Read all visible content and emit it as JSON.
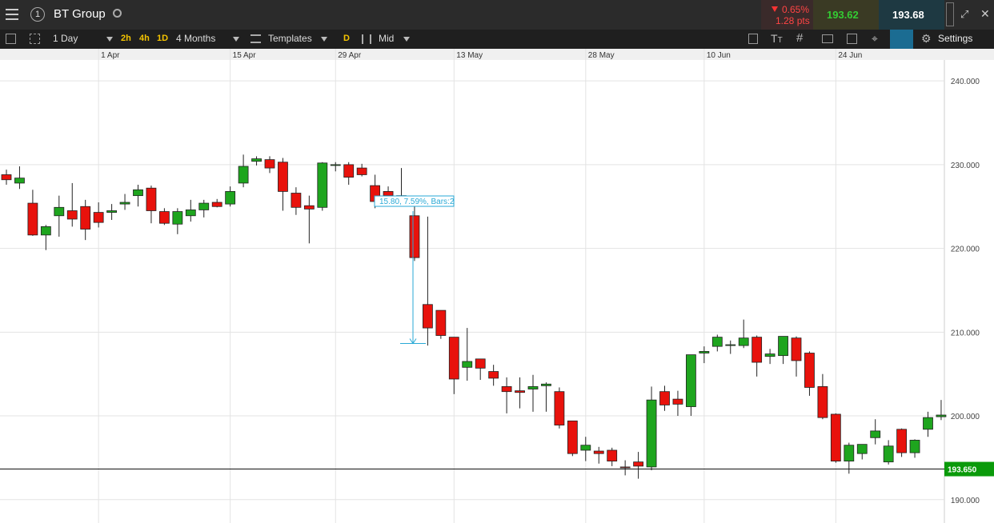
{
  "header": {
    "instrument": "BT Group",
    "link_number": "1",
    "change_percent": "0.65%",
    "change_points": "1.28 pts",
    "sell_price": "193.62",
    "buy_price": "193.68"
  },
  "toolbar": {
    "interval": "1 Day",
    "quick_intervals": [
      "2h",
      "4h",
      "1D"
    ],
    "range": "4 Months",
    "templates": "Templates",
    "drawing_mode": "D",
    "price_type": "Mid",
    "settings": "Settings"
  },
  "chart_data": {
    "type": "candlestick",
    "categories": [
      null,
      null,
      null,
      null,
      null,
      null,
      null,
      "1 Apr",
      null,
      null,
      null,
      null,
      null,
      null,
      null,
      null,
      null,
      "15 Apr",
      null,
      null,
      null,
      null,
      null,
      null,
      null,
      "29 Apr",
      null,
      null,
      null,
      null,
      null,
      null,
      null,
      null,
      "13 May",
      null,
      null,
      null,
      null,
      null,
      null,
      null,
      null,
      null,
      "28 May",
      null,
      null,
      null,
      null,
      null,
      null,
      null,
      null,
      "10 Jun",
      null,
      null,
      null,
      null,
      null,
      null,
      null,
      null,
      null,
      "24 Jun",
      null,
      null,
      null,
      null,
      null,
      null,
      null,
      null
    ],
    "open": [
      228.8,
      227.8,
      225.4,
      221.6,
      223.9,
      224.5,
      225.0,
      224.3,
      224.3,
      225.3,
      226.3,
      227.2,
      224.4,
      222.9,
      223.9,
      224.6,
      225.5,
      225.3,
      227.8,
      230.4,
      230.6,
      230.3,
      226.6,
      225.1,
      224.9,
      229.9,
      230.0,
      229.6,
      227.5,
      226.8,
      226.3,
      223.9,
      213.3,
      212.6,
      209.4,
      205.8,
      206.8,
      205.3,
      203.5,
      203.0,
      203.2,
      203.6,
      202.9,
      199.4,
      195.9,
      195.8,
      195.9,
      193.9,
      194.5,
      193.9,
      202.9,
      202.0,
      201.1,
      207.5,
      208.3,
      208.4,
      208.4,
      209.4,
      207.1,
      207.2,
      209.3,
      207.5,
      203.5,
      200.2,
      194.6,
      195.5,
      197.4,
      194.5,
      198.4,
      195.6,
      198.4,
      199.9
    ],
    "high": [
      229.4,
      229.8,
      227.0,
      222.8,
      226.3,
      227.8,
      225.8,
      225.5,
      225.3,
      226.5,
      227.6,
      227.5,
      224.8,
      224.8,
      225.8,
      225.8,
      225.9,
      227.4,
      231.2,
      231.0,
      231.0,
      230.8,
      227.3,
      226.3,
      230.3,
      230.3,
      230.3,
      230.1,
      228.8,
      227.4,
      229.6,
      226.0,
      223.8,
      212.6,
      209.4,
      210.5,
      206.8,
      206.1,
      204.6,
      204.6,
      204.9,
      204.0,
      203.4,
      199.4,
      197.5,
      196.3,
      196.2,
      194.7,
      195.7,
      203.5,
      203.6,
      203.0,
      207.3,
      208.3,
      209.7,
      209.0,
      211.5,
      209.6,
      208.0,
      209.5,
      209.5,
      207.7,
      205.0,
      200.3,
      196.8,
      196.6,
      199.6,
      197.1,
      198.5,
      197.2,
      200.5,
      201.9
    ],
    "low": [
      227.6,
      227.1,
      221.5,
      219.8,
      221.4,
      222.6,
      221.0,
      222.5,
      223.4,
      224.6,
      225.0,
      223.0,
      222.8,
      221.7,
      223.2,
      223.7,
      224.9,
      225.0,
      227.3,
      229.9,
      229.0,
      224.5,
      224.0,
      220.6,
      224.5,
      229.2,
      227.6,
      228.6,
      224.8,
      225.3,
      225.0,
      218.5,
      208.4,
      209.2,
      202.6,
      204.2,
      204.3,
      203.6,
      200.3,
      200.9,
      200.5,
      200.5,
      198.5,
      195.2,
      194.6,
      194.3,
      194.0,
      192.9,
      192.5,
      193.5,
      200.6,
      200.0,
      200.0,
      206.3,
      207.7,
      207.4,
      208.1,
      204.7,
      206.2,
      206.2,
      204.7,
      202.4,
      199.6,
      194.4,
      193.1,
      194.8,
      196.6,
      194.2,
      195.1,
      195.0,
      197.5,
      199.5
    ],
    "close": [
      228.2,
      228.4,
      221.6,
      222.6,
      224.9,
      223.5,
      222.3,
      223.1,
      224.5,
      225.5,
      227.0,
      224.5,
      223.0,
      224.4,
      224.6,
      225.4,
      225.0,
      226.8,
      229.8,
      230.7,
      229.6,
      226.8,
      224.9,
      224.7,
      230.2,
      230.0,
      228.5,
      228.8,
      225.6,
      226.3,
      225.6,
      218.9,
      210.5,
      209.6,
      204.4,
      206.5,
      205.7,
      204.5,
      202.9,
      202.8,
      203.5,
      203.8,
      198.9,
      195.5,
      196.5,
      195.5,
      194.6,
      193.8,
      194.0,
      201.9,
      201.3,
      201.4,
      207.3,
      207.7,
      209.4,
      208.5,
      209.3,
      206.4,
      207.4,
      209.5,
      206.6,
      203.4,
      199.8,
      194.6,
      196.5,
      196.6,
      198.2,
      196.4,
      195.6,
      197.1,
      199.8,
      200.1
    ],
    "up_color": "#1ea51e",
    "down_color": "#e8120c",
    "ylim": [
      187.4,
      242.5
    ],
    "yticks": [
      {
        "value": 190,
        "label": "190.000"
      },
      {
        "value": 200,
        "label": "200.000"
      },
      {
        "value": 210,
        "label": "210.000"
      },
      {
        "value": 220,
        "label": "220.000"
      },
      {
        "value": 230,
        "label": "230.000"
      },
      {
        "value": 240,
        "label": "240.000"
      }
    ],
    "grid": true,
    "last_price": {
      "value": 193.65,
      "label": "193.650"
    },
    "annotation": {
      "text": "15.80, 7.59%, Bars:2",
      "from": 224.45,
      "to": 208.65
    }
  }
}
